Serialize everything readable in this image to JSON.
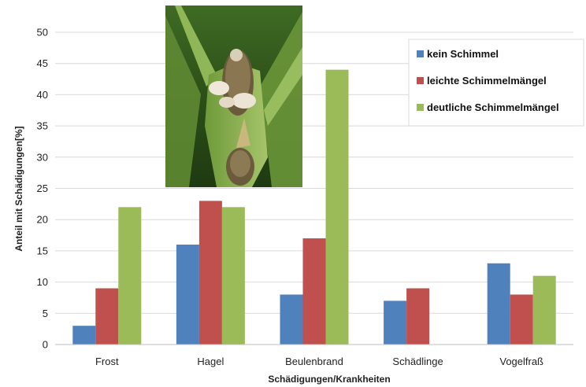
{
  "chart_data": {
    "type": "bar",
    "title": "",
    "xlabel": "Schädigungen/Krankheiten",
    "ylabel": "Anteil mit Schädigungen[%]",
    "ylim": [
      0,
      50
    ],
    "yticks": [
      0,
      5,
      10,
      15,
      20,
      25,
      30,
      35,
      40,
      45,
      50
    ],
    "grid": true,
    "legend_position": "top-right",
    "categories": [
      "Frost",
      "Hagel",
      "Beulenbrand",
      "Schädlinge",
      "Vogelfraß"
    ],
    "series": [
      {
        "name": "kein Schimmel",
        "color": "#4f81bd",
        "values": [
          3,
          16,
          8,
          7,
          13
        ]
      },
      {
        "name": "leichte Schimmelmängel",
        "color": "#c0504d",
        "values": [
          9,
          23,
          17,
          9,
          8
        ]
      },
      {
        "name": "deutliche Schimmelmängel",
        "color": "#9bbb59",
        "values": [
          22,
          22,
          44,
          0,
          11
        ]
      }
    ]
  },
  "inset_photo": {
    "subject": "corn-cob-with-mold-icon"
  }
}
